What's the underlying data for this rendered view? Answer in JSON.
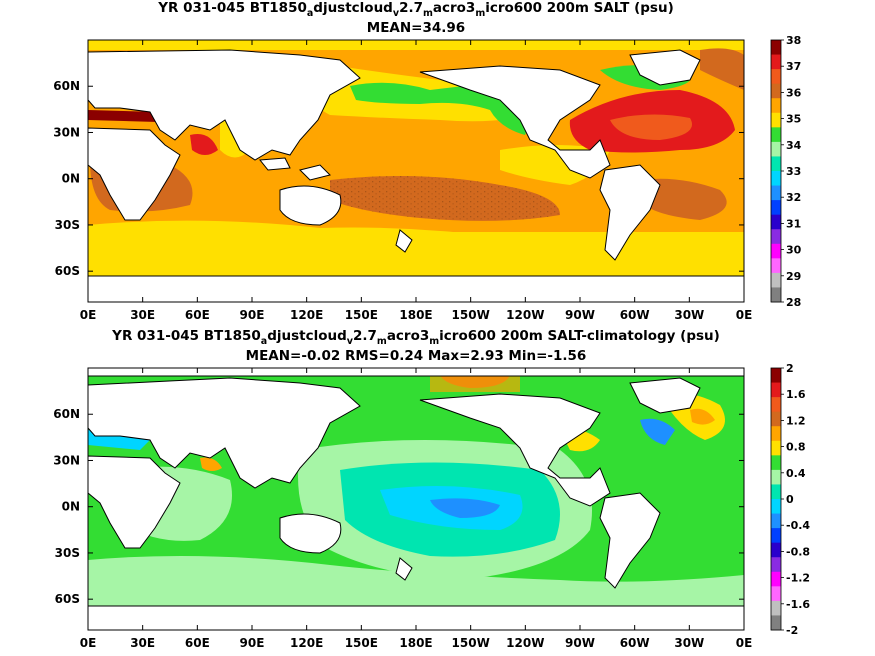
{
  "chart_data": [
    {
      "type": "heatmap",
      "title_parts": [
        "YR 031-045 BT1850",
        "a",
        "djustcloud",
        "v",
        "2.7",
        "m",
        "acro3",
        "m",
        "icro600 200m SALT (psu)"
      ],
      "subtitle": "MEAN=34.96",
      "x_ticks": [
        "0E",
        "30E",
        "60E",
        "90E",
        "120E",
        "150E",
        "180E",
        "150W",
        "120W",
        "90W",
        "60W",
        "30W",
        "0E"
      ],
      "y_ticks": [
        "60N",
        "30N",
        "0N",
        "30S",
        "60S"
      ],
      "colorbar": {
        "labels": [
          "38",
          "37",
          "36",
          "35",
          "34",
          "33",
          "32",
          "31",
          "30",
          "29",
          "28"
        ],
        "colors": [
          "#8b0000",
          "#e31a1c",
          "#f05a1c",
          "#d2691e",
          "#ffa500",
          "#ffe000",
          "#33dd33",
          "#a6f5a6",
          "#00e5b0",
          "#00d5ff",
          "#1e90ff",
          "#0040ff",
          "#2a00cc",
          "#8a2be2",
          "#ff00ff",
          "#ff66ff",
          "#c0c0c0",
          "#808080"
        ]
      },
      "mean": 34.96
    },
    {
      "type": "heatmap",
      "title_parts": [
        "YR 031-045 BT1850",
        "a",
        "djustcloud",
        "v",
        "2.7",
        "m",
        "acro3",
        "m",
        "icro600 200m SALT-climatology (psu)"
      ],
      "subtitle": "MEAN=-0.02   RMS=0.24   Max=2.93   Min=-1.56",
      "x_ticks": [
        "0E",
        "30E",
        "60E",
        "90E",
        "120E",
        "150E",
        "180E",
        "150W",
        "120W",
        "90W",
        "60W",
        "30W",
        "0E"
      ],
      "y_ticks": [
        "60N",
        "30N",
        "0N",
        "30S",
        "60S"
      ],
      "colorbar": {
        "labels": [
          "2",
          "1.6",
          "1.2",
          "0.8",
          "0.4",
          "0",
          "-0.4",
          "-0.8",
          "-1.2",
          "-1.6",
          "-2"
        ],
        "colors": [
          "#8b0000",
          "#e31a1c",
          "#f05a1c",
          "#d2691e",
          "#ffa500",
          "#ffe000",
          "#33dd33",
          "#a6f5a6",
          "#00e5b0",
          "#00d5ff",
          "#1e90ff",
          "#0040ff",
          "#2a00cc",
          "#8a2be2",
          "#ff00ff",
          "#ff66ff",
          "#c0c0c0",
          "#808080"
        ]
      },
      "mean": -0.02,
      "rms": 0.24,
      "max": 2.93,
      "min": -1.56
    }
  ]
}
